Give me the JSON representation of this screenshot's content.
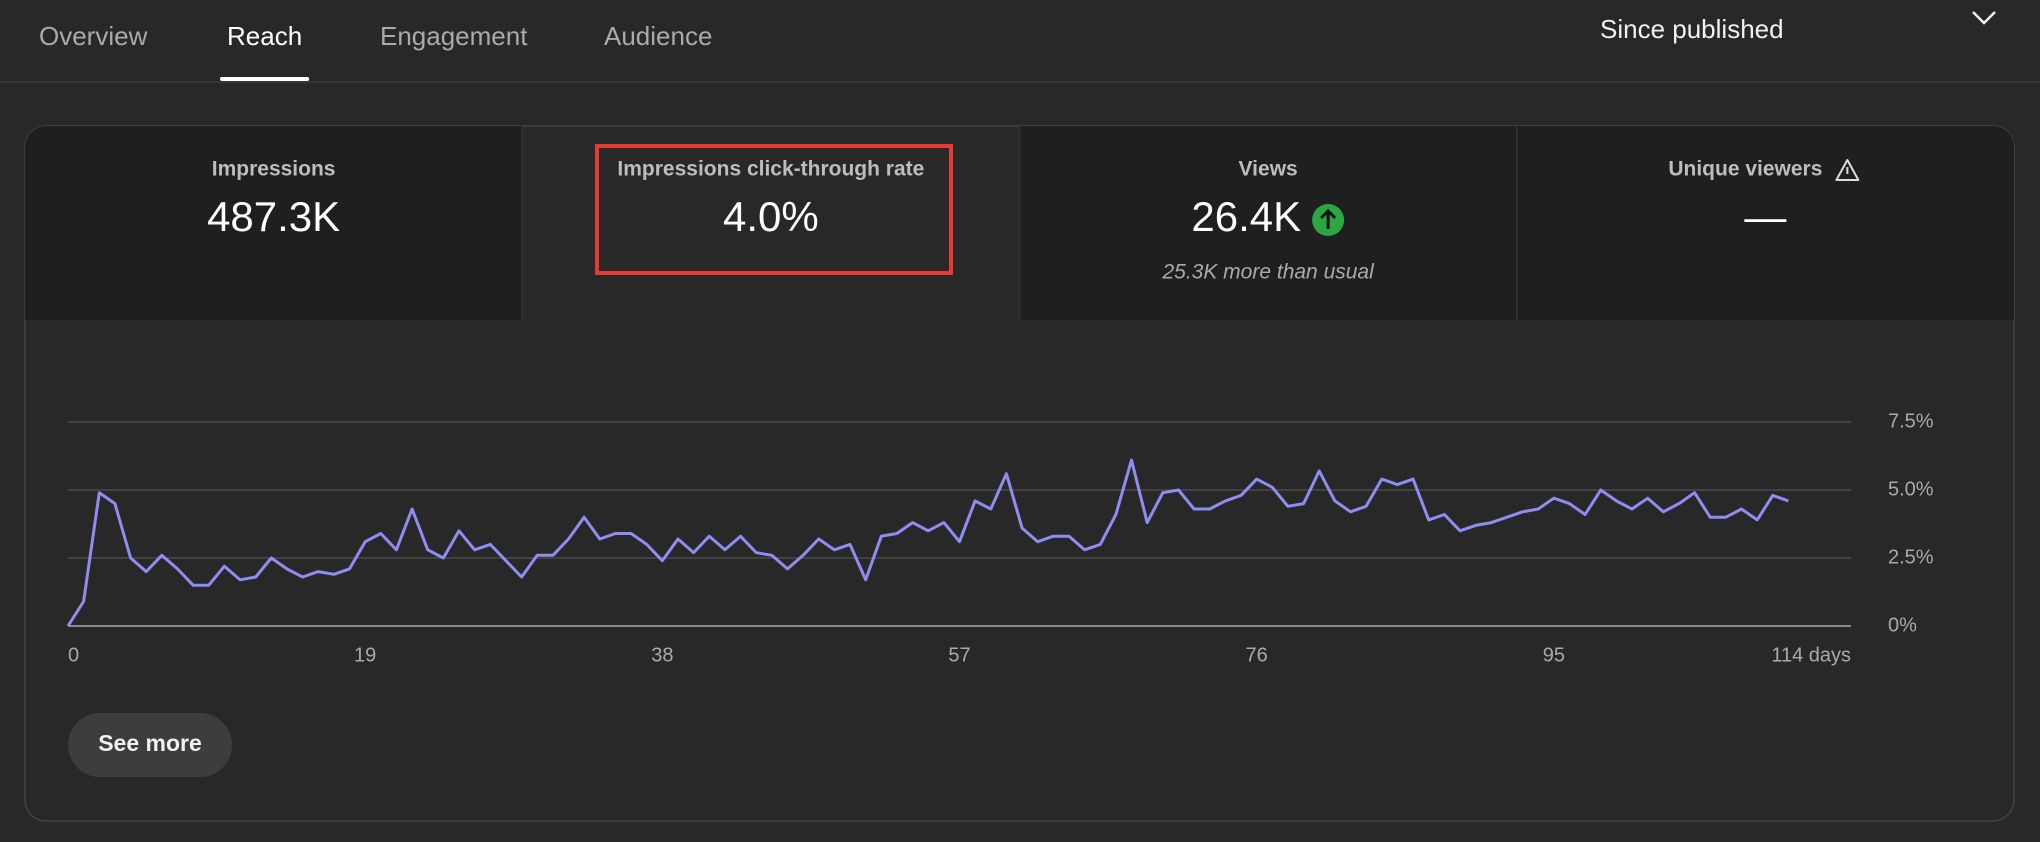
{
  "tabs": [
    "Overview",
    "Reach",
    "Engagement",
    "Audience"
  ],
  "selected_tab": 1,
  "date_range": "Since published",
  "metrics": [
    {
      "label": "Impressions",
      "value": "487.3K"
    },
    {
      "label": "Impressions click-through rate",
      "value": "4.0%"
    },
    {
      "label": "Views",
      "value": "26.4K",
      "note": "25.3K more than usual"
    },
    {
      "label": "Unique viewers",
      "value": "—"
    }
  ],
  "selected_metric": 1,
  "button": "See more",
  "chart_data": {
    "type": "line",
    "color": "#8f8cf2",
    "grid": true,
    "x": [
      0,
      1,
      2,
      3,
      4,
      5,
      6,
      7,
      8,
      9,
      10,
      11,
      12,
      13,
      14,
      15,
      16,
      17,
      18,
      19,
      20,
      21,
      22,
      23,
      24,
      25,
      26,
      27,
      28,
      29,
      30,
      31,
      32,
      33,
      34,
      35,
      36,
      37,
      38,
      39,
      40,
      41,
      42,
      43,
      44,
      45,
      46,
      47,
      48,
      49,
      50,
      51,
      52,
      53,
      54,
      55,
      56,
      57,
      58,
      59,
      60,
      61,
      62,
      63,
      64,
      65,
      66,
      67,
      68,
      69,
      70,
      71,
      72,
      73,
      74,
      75,
      76,
      77,
      78,
      79,
      80,
      81,
      82,
      83,
      84,
      85,
      86,
      87,
      88,
      89,
      90,
      91,
      92,
      93,
      94,
      95,
      96,
      97,
      98,
      99,
      100,
      101,
      102,
      103,
      104,
      105,
      106,
      107,
      108,
      109,
      110
    ],
    "values": [
      0,
      0.9,
      4.9,
      4.5,
      2.5,
      2.0,
      2.6,
      2.1,
      1.5,
      1.5,
      2.2,
      1.7,
      1.8,
      2.5,
      2.1,
      1.8,
      2.0,
      1.9,
      2.1,
      3.1,
      3.4,
      2.8,
      4.3,
      2.8,
      2.5,
      3.5,
      2.8,
      3.0,
      2.4,
      1.8,
      2.6,
      2.6,
      3.2,
      4.0,
      3.2,
      3.4,
      3.4,
      3.0,
      2.4,
      3.2,
      2.7,
      3.3,
      2.8,
      3.3,
      2.7,
      2.6,
      2.1,
      2.6,
      3.2,
      2.8,
      3.0,
      1.7,
      3.3,
      3.4,
      3.8,
      3.5,
      3.8,
      3.1,
      4.6,
      4.3,
      5.6,
      3.6,
      3.1,
      3.3,
      3.3,
      2.8,
      3.0,
      4.1,
      6.1,
      3.8,
      4.9,
      5.0,
      4.3,
      4.3,
      4.6,
      4.8,
      5.4,
      5.1,
      4.4,
      4.5,
      5.7,
      4.6,
      4.2,
      4.4,
      5.4,
      5.2,
      5.4,
      3.9,
      4.1,
      3.5,
      3.7,
      3.8,
      4.0,
      4.2,
      4.3,
      4.7,
      4.5,
      4.1,
      5.0,
      4.6,
      4.3,
      4.7,
      4.2,
      4.5,
      4.9,
      4.0,
      4.0,
      4.3,
      3.9,
      4.8,
      4.6
    ],
    "xlim": [
      0,
      114
    ],
    "xticks": [
      0,
      19,
      38,
      57,
      76,
      95,
      {
        "value": 114,
        "label": "114 days"
      }
    ],
    "ylim": [
      0,
      7.5
    ],
    "yticks": [
      {
        "value": 0,
        "label": "0%"
      },
      {
        "value": 2.5,
        "label": "2.5%"
      },
      {
        "value": 5,
        "label": "5.0%"
      },
      {
        "value": 7.5,
        "label": "7.5%"
      }
    ]
  }
}
